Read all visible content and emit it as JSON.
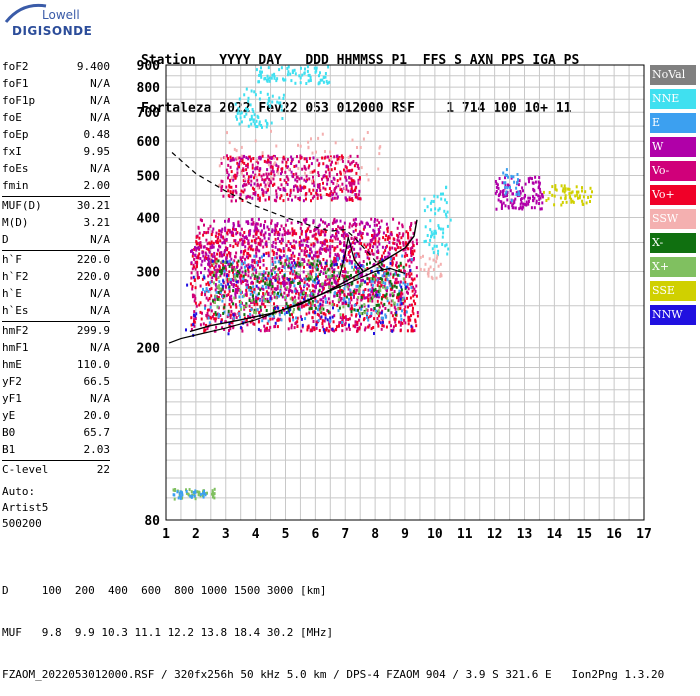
{
  "logo": {
    "top": "Lowell",
    "main": "DIGISONDE"
  },
  "header": {
    "line1": "Station   YYYY DAY   DDD HHMMSS P1  FFS S AXN PPS IGA PS",
    "line2": "Fortaleza 2022 Fev22 053 012000 RSF    1 714 100 10+ 11"
  },
  "params": {
    "group1": [
      {
        "label": "foF2",
        "value": "9.400"
      },
      {
        "label": "foF1",
        "value": "N/A"
      },
      {
        "label": "foF1p",
        "value": "N/A"
      },
      {
        "label": "foE",
        "value": "N/A"
      },
      {
        "label": "foEp",
        "value": "0.48"
      },
      {
        "label": "fxI",
        "value": "9.95"
      },
      {
        "label": "foEs",
        "value": "N/A"
      },
      {
        "label": "fmin",
        "value": "2.00"
      }
    ],
    "group2": [
      {
        "label": "MUF(D)",
        "value": "30.21"
      },
      {
        "label": "M(D)",
        "value": "3.21"
      },
      {
        "label": "D",
        "value": "N/A"
      }
    ],
    "group3": [
      {
        "label": "h`F",
        "value": "220.0"
      },
      {
        "label": "h`F2",
        "value": "220.0"
      },
      {
        "label": "h`E",
        "value": "N/A"
      },
      {
        "label": "h`Es",
        "value": "N/A"
      }
    ],
    "group4": [
      {
        "label": "hmF2",
        "value": "299.9"
      },
      {
        "label": "hmF1",
        "value": "N/A"
      },
      {
        "label": "hmE",
        "value": "110.0"
      },
      {
        "label": "yF2",
        "value": "66.5"
      },
      {
        "label": "yF1",
        "value": "N/A"
      },
      {
        "label": "yE",
        "value": "20.0"
      },
      {
        "label": "B0",
        "value": "65.7"
      },
      {
        "label": "B1",
        "value": "2.03"
      }
    ],
    "group5": [
      {
        "label": "C-level",
        "value": "22"
      }
    ]
  },
  "auto": {
    "line1": "Auto:",
    "line2": "Artist5",
    "line3": "500200"
  },
  "legend": [
    {
      "label": "NoVal",
      "color": "#808080"
    },
    {
      "label": "NNE",
      "color": "#40e0f0"
    },
    {
      "label": "E",
      "color": "#3ca0f0"
    },
    {
      "label": "W",
      "color": "#b000a8"
    },
    {
      "label": "Vo-",
      "color": "#d0007a"
    },
    {
      "label": "Vo+",
      "color": "#f00028"
    },
    {
      "label": "SSW",
      "color": "#f4b0b0"
    },
    {
      "label": "X-",
      "color": "#107010"
    },
    {
      "label": "X+",
      "color": "#80c060"
    },
    {
      "label": "SSE",
      "color": "#d0d000"
    },
    {
      "label": "NNW",
      "color": "#2010e0"
    }
  ],
  "bottom": {
    "line1": "D     100  200  400  600  800 1000 1500 3000 [km]",
    "line2": "MUF   9.8  9.9 10.3 11.1 12.2 13.8 18.4 30.2 [MHz]",
    "line3": "FZAOM_2022053012000.RSF / 320fx256h 50 kHz 5.0 km / DPS-4 FZAOM 904 / 3.9 S 321.6 E   Ion2Png 1.3.20"
  },
  "chart_data": {
    "type": "scatter",
    "xlim": [
      1,
      17
    ],
    "ylim": [
      80,
      900
    ],
    "x_ticks": [
      1,
      2,
      3,
      4,
      5,
      6,
      7,
      8,
      9,
      10,
      11,
      12,
      13,
      14,
      15,
      16,
      17
    ],
    "y_ticks": [
      80,
      200,
      300,
      400,
      500,
      600,
      700,
      800,
      900
    ],
    "y_scale": "log",
    "grid": true,
    "xlabel": "",
    "ylabel": "",
    "trace_o": [
      [
        1.1,
        205
      ],
      [
        1.5,
        210
      ],
      [
        2,
        214
      ],
      [
        3,
        222
      ],
      [
        4,
        232
      ],
      [
        5,
        246
      ],
      [
        6,
        262
      ],
      [
        7,
        280
      ],
      [
        8,
        300
      ],
      [
        8.5,
        305
      ],
      [
        9.0,
        297
      ]
    ],
    "trace_mid": [
      [
        1.8,
        218
      ],
      [
        2.5,
        225
      ],
      [
        3.5,
        232
      ],
      [
        4.5,
        240
      ],
      [
        5.5,
        252
      ],
      [
        6.5,
        272
      ],
      [
        7.5,
        297
      ],
      [
        8.3,
        318
      ],
      [
        9,
        340
      ],
      [
        9.3,
        362
      ],
      [
        9.4,
        395
      ]
    ],
    "profile": [
      [
        1.2,
        565
      ],
      [
        2,
        505
      ],
      [
        3,
        460
      ],
      [
        4,
        425
      ],
      [
        5,
        400
      ],
      [
        6,
        380
      ],
      [
        6.5,
        372
      ],
      [
        7.0,
        375
      ],
      [
        7.3,
        360
      ],
      [
        7.8,
        330
      ],
      [
        8.3,
        300
      ]
    ],
    "x_trace": [
      [
        6.8,
        290
      ],
      [
        7.0,
        330
      ],
      [
        7.1,
        360
      ],
      [
        7.3,
        320
      ],
      [
        7.6,
        300
      ]
    ],
    "clusters": [
      {
        "x": [
          1.8,
          9.4
        ],
        "y": [
          220,
          400
        ],
        "color": "#d0007a",
        "n": 900
      },
      {
        "x": [
          1.8,
          9.4
        ],
        "y": [
          220,
          380
        ],
        "color": "#f00028",
        "n": 700
      },
      {
        "x": [
          2.5,
          8.5
        ],
        "y": [
          260,
          400
        ],
        "color": "#b000a8",
        "n": 450
      },
      {
        "x": [
          2.2,
          9.2
        ],
        "y": [
          230,
          330
        ],
        "color": "#3ca0f0",
        "n": 220
      },
      {
        "x": [
          2.5,
          9.0
        ],
        "y": [
          240,
          320
        ],
        "color": "#107010",
        "n": 200
      },
      {
        "x": [
          2.5,
          9.0
        ],
        "y": [
          240,
          320
        ],
        "color": "#80c060",
        "n": 120
      },
      {
        "x": [
          1.6,
          9.3
        ],
        "y": [
          215,
          330
        ],
        "color": "#2010e0",
        "n": 90
      },
      {
        "x": [
          2.8,
          7.5
        ],
        "y": [
          440,
          560
        ],
        "color": "#d0007a",
        "n": 260
      },
      {
        "x": [
          3.0,
          7.5
        ],
        "y": [
          440,
          560
        ],
        "color": "#f00028",
        "n": 160
      },
      {
        "x": [
          3.0,
          7.5
        ],
        "y": [
          440,
          560
        ],
        "color": "#b000a8",
        "n": 90
      },
      {
        "x": [
          2.6,
          8.2
        ],
        "y": [
          460,
          640
        ],
        "color": "#f4b0b0",
        "n": 70
      },
      {
        "x": [
          3.3,
          5.0
        ],
        "y": [
          650,
          800
        ],
        "color": "#40e0f0",
        "n": 70
      },
      {
        "x": [
          4.0,
          6.5
        ],
        "y": [
          820,
          900
        ],
        "color": "#40e0f0",
        "n": 80
      },
      {
        "x": [
          9.6,
          10.5
        ],
        "y": [
          330,
          480
        ],
        "color": "#40e0f0",
        "n": 60
      },
      {
        "x": [
          9.4,
          10.2
        ],
        "y": [
          290,
          330
        ],
        "color": "#f4b0b0",
        "n": 25
      },
      {
        "x": [
          12.0,
          13.6
        ],
        "y": [
          420,
          500
        ],
        "color": "#b000a8",
        "n": 130
      },
      {
        "x": [
          12.2,
          12.8
        ],
        "y": [
          440,
          520
        ],
        "color": "#3ca0f0",
        "n": 25
      },
      {
        "x": [
          13.6,
          15.3
        ],
        "y": [
          430,
          480
        ],
        "color": "#d0d000",
        "n": 60
      },
      {
        "x": [
          1.2,
          2.6
        ],
        "y": [
          90,
          95
        ],
        "color": "#80c060",
        "n": 40
      },
      {
        "x": [
          1.2,
          2.3
        ],
        "y": [
          90,
          95
        ],
        "color": "#3ca0f0",
        "n": 25
      },
      {
        "x": [
          1.8,
          2.6
        ],
        "y": [
          300,
          345
        ],
        "color": "#b000a8",
        "n": 30
      }
    ]
  }
}
